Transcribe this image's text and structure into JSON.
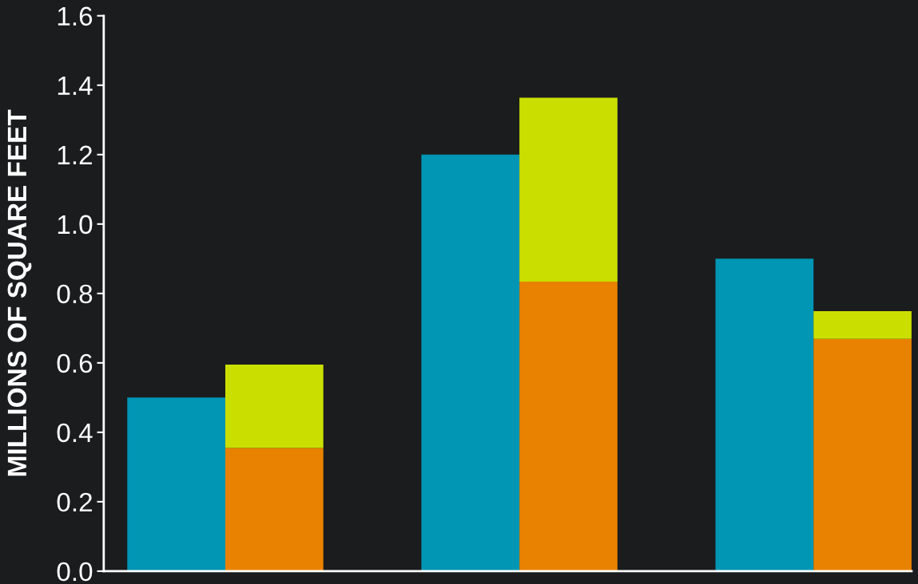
{
  "chart_data": {
    "type": "bar",
    "ylabel": "MILLIONS OF SQUARE FEET",
    "categories": [
      null,
      null,
      null,
      null,
      null,
      null,
      null,
      null
    ],
    "stacked": true,
    "series": [
      {
        "color": "#0096b4",
        "values": [
          0.5,
          null,
          null,
          1.2,
          null,
          null,
          0.9,
          null
        ]
      },
      {
        "color": "#e88200",
        "values": [
          null,
          0.355,
          null,
          null,
          0.834,
          null,
          null,
          0.669
        ]
      },
      {
        "color": "#cadf00",
        "values": [
          null,
          0.24,
          null,
          null,
          0.53,
          null,
          null,
          0.08
        ]
      }
    ],
    "ylim": [
      0,
      1.6
    ],
    "yticks": [
      {
        "value": 0,
        "label": "0.0"
      },
      0.2,
      0.4,
      0.6,
      0.8,
      {
        "value": 1,
        "label": "1.0"
      },
      1.2,
      1.4,
      1.6
    ],
    "grid": false
  }
}
